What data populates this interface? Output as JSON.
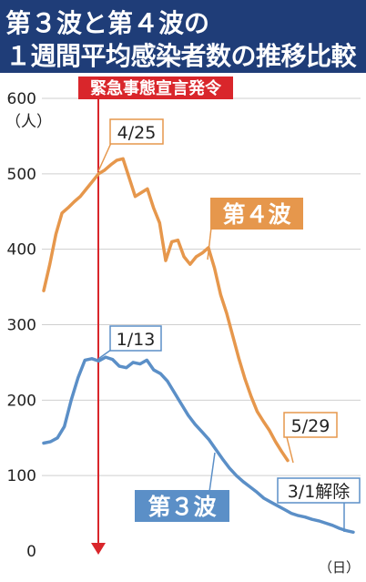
{
  "title": {
    "line1": "第３波と第４波の",
    "line2": "１週間平均感染者数の推移比較"
  },
  "colors": {
    "header_bg": "#1f3d78",
    "wave3": "#5b8fc7",
    "wave4": "#e6974c",
    "emergency": "#d9262b",
    "grid": "#cfcfcf"
  },
  "chart_data": {
    "type": "line",
    "ylabel": "（人）",
    "xlabel": "（日）",
    "ylim": [
      0,
      600
    ],
    "yticks": [
      0,
      100,
      200,
      300,
      400,
      500,
      600
    ],
    "grid": true,
    "series": [
      {
        "name": "第４波",
        "color": "#e6974c",
        "values": [
          345,
          380,
          420,
          448,
          455,
          463,
          470,
          480,
          490,
          500,
          505,
          512,
          518,
          520,
          495,
          470,
          475,
          480,
          455,
          435,
          385,
          410,
          412,
          390,
          380,
          390,
          395,
          402,
          375,
          340,
          315,
          285,
          255,
          228,
          205,
          185,
          172,
          160,
          145,
          132,
          120
        ]
      },
      {
        "name": "第３波",
        "color": "#5b8fc7",
        "values": [
          143,
          145,
          150,
          165,
          200,
          230,
          253,
          255,
          252,
          257,
          254,
          245,
          243,
          250,
          248,
          253,
          240,
          235,
          225,
          210,
          195,
          180,
          168,
          158,
          148,
          135,
          122,
          110,
          100,
          92,
          85,
          78,
          70,
          65,
          60,
          55,
          50,
          47,
          45,
          42,
          40,
          37,
          34,
          30,
          27,
          25
        ]
      }
    ],
    "annotations": {
      "emergency_label": "緊急事態宣言発令",
      "wave4_peak": "4/25",
      "wave3_peak": "1/13",
      "wave4_end": "5/29",
      "wave3_end": "3/1解除",
      "wave4_label": "第４波",
      "wave3_label": "第３波"
    }
  }
}
